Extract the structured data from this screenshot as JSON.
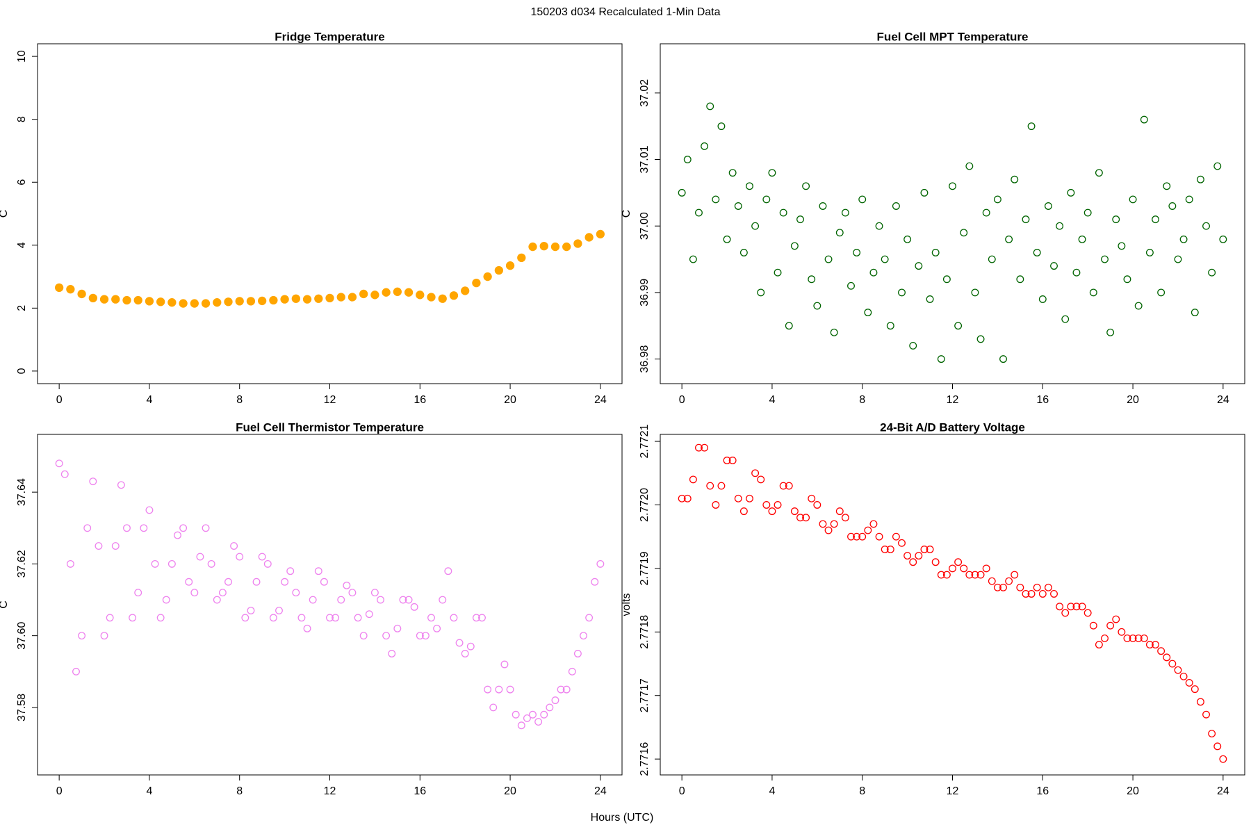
{
  "title": "150203   d034   Recalculated 1-Min Data",
  "xlabel": "Hours (UTC)",
  "chart_data": [
    {
      "type": "scatter",
      "title": "Fridge Temperature",
      "ylabel": "C",
      "color": "#ffa500",
      "filled": true,
      "xlim": [
        -0.96,
        24.96
      ],
      "xticks": [
        0,
        4,
        8,
        12,
        16,
        20,
        24
      ],
      "ylim": [
        -0.4,
        10.4
      ],
      "yticks": [
        0,
        2,
        4,
        6,
        8,
        10
      ],
      "x": [
        0,
        0.5,
        1,
        1.5,
        2,
        2.5,
        3,
        3.5,
        4,
        4.5,
        5,
        5.5,
        6,
        6.5,
        7,
        7.5,
        8,
        8.5,
        9,
        9.5,
        10,
        10.5,
        11,
        11.5,
        12,
        12.5,
        13,
        13.5,
        14,
        14.5,
        15,
        15.5,
        16,
        16.5,
        17,
        17.5,
        18,
        18.5,
        19,
        19.5,
        20,
        20.5,
        21,
        21.5,
        22,
        22.5,
        23,
        23.5,
        24
      ],
      "values": [
        2.65,
        2.6,
        2.45,
        2.32,
        2.28,
        2.28,
        2.25,
        2.25,
        2.22,
        2.2,
        2.18,
        2.15,
        2.15,
        2.15,
        2.18,
        2.2,
        2.22,
        2.22,
        2.23,
        2.25,
        2.28,
        2.3,
        2.28,
        2.3,
        2.32,
        2.35,
        2.35,
        2.45,
        2.42,
        2.5,
        2.52,
        2.5,
        2.42,
        2.35,
        2.3,
        2.4,
        2.55,
        2.8,
        3.0,
        3.2,
        3.35,
        3.6,
        3.95,
        3.97,
        3.95,
        3.95,
        4.05,
        4.25,
        4.35
      ]
    },
    {
      "type": "scatter",
      "title": "Fuel Cell MPT Temperature",
      "ylabel": "C",
      "color": "#006400",
      "filled": false,
      "xlim": [
        -0.96,
        24.96
      ],
      "xticks": [
        0,
        4,
        8,
        12,
        16,
        20,
        24
      ],
      "ylim": [
        36.9763,
        37.0274
      ],
      "yticks": [
        36.98,
        36.99,
        {
          "value": 37,
          "label": "37.00"
        },
        37.01,
        37.02
      ],
      "x": [
        0,
        0.25,
        0.5,
        0.75,
        1,
        1.25,
        1.5,
        1.75,
        2,
        2.25,
        2.5,
        2.75,
        3,
        3.25,
        3.5,
        3.75,
        4,
        4.25,
        4.5,
        4.75,
        5,
        5.25,
        5.5,
        5.75,
        6,
        6.25,
        6.5,
        6.75,
        7,
        7.25,
        7.5,
        7.75,
        8,
        8.25,
        8.5,
        8.75,
        9,
        9.25,
        9.5,
        9.75,
        10,
        10.25,
        10.5,
        10.75,
        11,
        11.25,
        11.5,
        11.75,
        12,
        12.25,
        12.5,
        12.75,
        13,
        13.25,
        13.5,
        13.75,
        14,
        14.25,
        14.5,
        14.75,
        15,
        15.25,
        15.5,
        15.75,
        16,
        16.25,
        16.5,
        16.75,
        17,
        17.25,
        17.5,
        17.75,
        18,
        18.25,
        18.5,
        18.75,
        19,
        19.25,
        19.5,
        19.75,
        20,
        20.25,
        20.5,
        20.75,
        21,
        21.25,
        21.5,
        21.75,
        22,
        22.25,
        22.5,
        22.75,
        23,
        23.25,
        23.5,
        23.75,
        24
      ],
      "values": [
        37.005,
        37.01,
        36.995,
        37.002,
        37.012,
        37.018,
        37.004,
        37.015,
        36.998,
        37.008,
        37.003,
        36.996,
        37.006,
        37.0,
        36.99,
        37.004,
        37.008,
        36.993,
        37.002,
        36.985,
        36.997,
        37.001,
        37.006,
        36.992,
        36.988,
        37.003,
        36.995,
        36.984,
        36.999,
        37.002,
        36.991,
        36.996,
        37.004,
        36.987,
        36.993,
        37.0,
        36.995,
        36.985,
        37.003,
        36.99,
        36.998,
        36.982,
        36.994,
        37.005,
        36.989,
        36.996,
        36.98,
        36.992,
        37.006,
        36.985,
        36.999,
        37.009,
        36.99,
        36.983,
        37.002,
        36.995,
        37.004,
        36.98,
        36.998,
        37.007,
        36.992,
        37.001,
        37.015,
        36.996,
        36.989,
        37.003,
        36.994,
        37.0,
        36.986,
        37.005,
        36.993,
        36.998,
        37.002,
        36.99,
        37.008,
        36.995,
        36.984,
        37.001,
        36.997,
        36.992,
        37.004,
        36.988,
        37.016,
        36.996,
        37.001,
        36.99,
        37.006,
        37.003,
        36.995,
        36.998,
        37.004,
        36.987,
        37.007,
        37.0,
        36.993,
        37.009,
        36.998
      ]
    },
    {
      "type": "scatter",
      "title": "Fuel Cell Thermistor Temperature",
      "ylabel": "C",
      "color": "#ee82ee",
      "filled": false,
      "xlim": [
        -0.96,
        24.96
      ],
      "xticks": [
        0,
        4,
        8,
        12,
        16,
        20,
        24
      ],
      "ylim": [
        37.5612,
        37.6561
      ],
      "yticks": [
        37.58,
        {
          "value": 37.6,
          "label": "37.60"
        },
        37.62,
        37.64
      ],
      "x": [
        0,
        0.25,
        0.5,
        0.75,
        1,
        1.25,
        1.5,
        1.75,
        2,
        2.25,
        2.5,
        2.75,
        3,
        3.25,
        3.5,
        3.75,
        4,
        4.25,
        4.5,
        4.75,
        5,
        5.25,
        5.5,
        5.75,
        6,
        6.25,
        6.5,
        6.75,
        7,
        7.25,
        7.5,
        7.75,
        8,
        8.25,
        8.5,
        8.75,
        9,
        9.25,
        9.5,
        9.75,
        10,
        10.25,
        10.5,
        10.75,
        11,
        11.25,
        11.5,
        11.75,
        12,
        12.25,
        12.5,
        12.75,
        13,
        13.25,
        13.5,
        13.75,
        14,
        14.25,
        14.5,
        14.75,
        15,
        15.25,
        15.5,
        15.75,
        16,
        16.25,
        16.5,
        16.75,
        17,
        17.25,
        17.5,
        17.75,
        18,
        18.25,
        18.5,
        18.75,
        19,
        19.25,
        19.5,
        19.75,
        20,
        20.25,
        20.5,
        20.75,
        21,
        21.25,
        21.5,
        21.75,
        22,
        22.25,
        22.5,
        22.75,
        23,
        23.25,
        23.5,
        23.75,
        24
      ],
      "values": [
        37.648,
        37.645,
        37.62,
        37.59,
        37.6,
        37.63,
        37.643,
        37.625,
        37.6,
        37.605,
        37.625,
        37.642,
        37.63,
        37.605,
        37.612,
        37.63,
        37.635,
        37.62,
        37.605,
        37.61,
        37.62,
        37.628,
        37.63,
        37.615,
        37.612,
        37.622,
        37.63,
        37.62,
        37.61,
        37.612,
        37.615,
        37.625,
        37.622,
        37.605,
        37.607,
        37.615,
        37.622,
        37.62,
        37.605,
        37.607,
        37.615,
        37.618,
        37.612,
        37.605,
        37.602,
        37.61,
        37.618,
        37.615,
        37.605,
        37.605,
        37.61,
        37.614,
        37.612,
        37.605,
        37.6,
        37.606,
        37.612,
        37.61,
        37.6,
        37.595,
        37.602,
        37.61,
        37.61,
        37.608,
        37.6,
        37.6,
        37.605,
        37.602,
        37.61,
        37.618,
        37.605,
        37.598,
        37.595,
        37.597,
        37.605,
        37.605,
        37.585,
        37.58,
        37.585,
        37.592,
        37.585,
        37.578,
        37.575,
        37.577,
        37.578,
        37.576,
        37.578,
        37.58,
        37.582,
        37.585,
        37.585,
        37.59,
        37.595,
        37.6,
        37.605,
        37.615,
        37.62
      ]
    },
    {
      "type": "scatter",
      "title": "24-Bit A/D Battery Voltage",
      "ylabel": "volts",
      "color": "#ff0000",
      "filled": false,
      "xlim": [
        -0.96,
        24.96
      ],
      "xticks": [
        0,
        4,
        8,
        12,
        16,
        20,
        24
      ],
      "ylim": [
        2.771575,
        2.772111
      ],
      "yticks": [
        2.7716,
        2.7717,
        2.7718,
        2.7719,
        {
          "value": 2.772,
          "label": "2.7720"
        },
        2.7721
      ],
      "x": [
        0,
        0.25,
        0.5,
        0.75,
        1,
        1.25,
        1.5,
        1.75,
        2,
        2.25,
        2.5,
        2.75,
        3,
        3.25,
        3.5,
        3.75,
        4,
        4.25,
        4.5,
        4.75,
        5,
        5.25,
        5.5,
        5.75,
        6,
        6.25,
        6.5,
        6.75,
        7,
        7.25,
        7.5,
        7.75,
        8,
        8.25,
        8.5,
        8.75,
        9,
        9.25,
        9.5,
        9.75,
        10,
        10.25,
        10.5,
        10.75,
        11,
        11.25,
        11.5,
        11.75,
        12,
        12.25,
        12.5,
        12.75,
        13,
        13.25,
        13.5,
        13.75,
        14,
        14.25,
        14.5,
        14.75,
        15,
        15.25,
        15.5,
        15.75,
        16,
        16.25,
        16.5,
        16.75,
        17,
        17.25,
        17.5,
        17.75,
        18,
        18.25,
        18.5,
        18.75,
        19,
        19.25,
        19.5,
        19.75,
        20,
        20.25,
        20.5,
        20.75,
        21,
        21.25,
        21.5,
        21.75,
        22,
        22.25,
        22.5,
        22.75,
        23,
        23.25,
        23.5,
        23.75,
        24
      ],
      "values": [
        2.77201,
        2.77201,
        2.77204,
        2.77209,
        2.77209,
        2.77203,
        2.772,
        2.77203,
        2.77207,
        2.77207,
        2.77201,
        2.77199,
        2.77201,
        2.77205,
        2.77204,
        2.772,
        2.77199,
        2.772,
        2.77203,
        2.77203,
        2.77199,
        2.77198,
        2.77198,
        2.77201,
        2.772,
        2.77197,
        2.77196,
        2.77197,
        2.77199,
        2.77198,
        2.77195,
        2.77195,
        2.77195,
        2.77196,
        2.77197,
        2.77195,
        2.77193,
        2.77193,
        2.77195,
        2.77194,
        2.77192,
        2.77191,
        2.77192,
        2.77193,
        2.77193,
        2.77191,
        2.77189,
        2.77189,
        2.7719,
        2.77191,
        2.7719,
        2.77189,
        2.77189,
        2.77189,
        2.7719,
        2.77188,
        2.77187,
        2.77187,
        2.77188,
        2.77189,
        2.77187,
        2.77186,
        2.77186,
        2.77187,
        2.77186,
        2.77187,
        2.77186,
        2.77184,
        2.77183,
        2.77184,
        2.77184,
        2.77184,
        2.77183,
        2.77181,
        2.77178,
        2.77179,
        2.77181,
        2.77182,
        2.7718,
        2.77179,
        2.77179,
        2.77179,
        2.77179,
        2.77178,
        2.77178,
        2.77177,
        2.77176,
        2.77175,
        2.77174,
        2.77173,
        2.77172,
        2.77171,
        2.77169,
        2.77167,
        2.77164,
        2.77162,
        2.7716
      ]
    }
  ]
}
